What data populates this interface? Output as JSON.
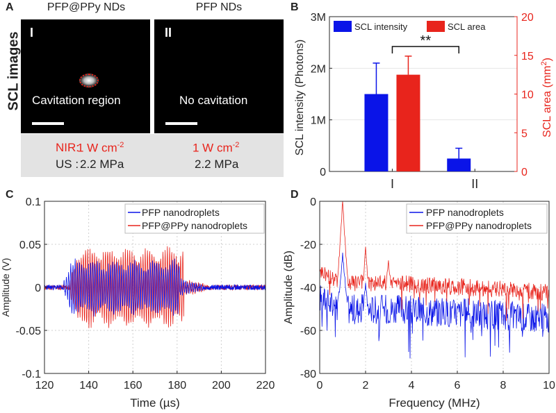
{
  "colors": {
    "blue": "#0a14e8",
    "red": "#e8241c",
    "gray": "#e3e3e3"
  },
  "panel_a": {
    "label": "A",
    "side_title": "SCL images",
    "left": {
      "title": "PFP@PPy NDs",
      "numeral": "I",
      "caption": "Cavitation region"
    },
    "right": {
      "title": "PFP NDs",
      "numeral": "II",
      "caption": "No cavitation"
    },
    "conditions": {
      "nir_label": "NIR:",
      "nir_value": "1 W cm",
      "nir_exp": "-2",
      "us_label": "US :",
      "us_value": "2.2 MPa",
      "right_nir_value": "1 W cm",
      "right_nir_exp": "-2",
      "right_us_value": "2.2 MPa"
    }
  },
  "chart_data": [
    {
      "panel": "B",
      "type": "bar",
      "categories": [
        "I",
        "II"
      ],
      "series": [
        {
          "name": "SCL intensity",
          "axis": "left",
          "values": [
            1500000,
            250000
          ],
          "errors": [
            600000,
            200000
          ]
        },
        {
          "name": "SCL area",
          "axis": "right",
          "values": [
            12.5,
            null
          ],
          "errors": [
            2.4,
            null
          ]
        }
      ],
      "ylabel": "SCL intensity (Photons)",
      "ylabel_right": "SCL area (mm",
      "ylabel_right_exp": "2",
      "ylabel_right_end": ")",
      "ylim": [
        0,
        3000000
      ],
      "ylim_right": [
        0,
        20
      ],
      "yticks": [
        "0",
        "1M",
        "2M",
        "3M"
      ],
      "yticks_right": [
        "0",
        "5",
        "10",
        "15",
        "20"
      ],
      "annotation": "**",
      "legend_position": "top"
    },
    {
      "panel": "C",
      "type": "line",
      "xlabel": "Time (µs)",
      "ylabel": "Amplitude (V)",
      "xlim": [
        120,
        220
      ],
      "ylim": [
        -0.1,
        0.1
      ],
      "xticks": [
        "120",
        "140",
        "160",
        "180",
        "200",
        "220"
      ],
      "yticks": [
        "-0.1",
        "-0.05",
        "0",
        "0.05",
        "0.1"
      ],
      "series": [
        {
          "name": "PFP nanodroplets",
          "burst_start": 128,
          "burst_end": 181,
          "peak_amplitude": 0.03
        },
        {
          "name": "PFP@PPy nanodroplets",
          "burst_start": 131,
          "burst_end": 183,
          "peak_amplitude": 0.045
        }
      ],
      "legend_position": "top-right"
    },
    {
      "panel": "D",
      "type": "line",
      "xlabel": "Frequency (MHz)",
      "ylabel": "Amplitude (dB)",
      "xlim": [
        0,
        10
      ],
      "ylim": [
        -80,
        0
      ],
      "xticks": [
        "0",
        "2",
        "4",
        "6",
        "8",
        "10"
      ],
      "yticks": [
        "-80",
        "-60",
        "-40",
        "-20",
        "0"
      ],
      "series": [
        {
          "name": "PFP nanodroplets",
          "baseline_db": -50,
          "peaks": [
            [
              1.0,
              -25
            ],
            [
              2.0,
              -38
            ]
          ]
        },
        {
          "name": "PFP@PPy nanodroplets",
          "baseline_db": -38,
          "peaks": [
            [
              1.0,
              0
            ],
            [
              2.0,
              -20
            ],
            [
              3.0,
              -28
            ]
          ]
        }
      ],
      "legend_position": "top-right"
    }
  ]
}
